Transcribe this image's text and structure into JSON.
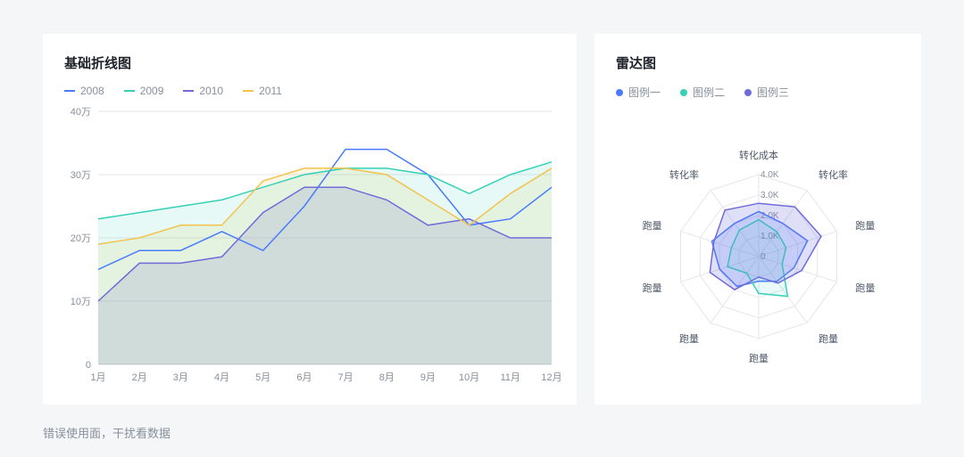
{
  "caption": "错误使用面，干扰看数据",
  "line_chart": {
    "type": "line-area",
    "title": "基础折线图",
    "title_fontsize": 15,
    "legend_items": [
      "2008",
      "2009",
      "2010",
      "2011"
    ],
    "legend_colors": [
      "#4a7afe",
      "#34d1b7",
      "#6f6cd9",
      "#f2c34d"
    ],
    "x_categories": [
      "1月",
      "2月",
      "3月",
      "4月",
      "5月",
      "6月",
      "7月",
      "8月",
      "9月",
      "10月",
      "11月",
      "12月"
    ],
    "y_ticks": [
      "0",
      "10万",
      "20万",
      "30万",
      "40万"
    ],
    "ylim": [
      0,
      40
    ],
    "series": {
      "s2008": {
        "color": "#4a7afe",
        "fill_opacity": 0.0,
        "values": [
          15,
          18,
          18,
          21,
          18,
          25,
          34,
          34,
          30,
          22,
          23,
          28
        ]
      },
      "s2009": {
        "color": "#34d1b7",
        "fill_opacity": 0.12,
        "values": [
          23,
          24,
          25,
          26,
          28,
          30,
          31,
          31,
          30,
          27,
          30,
          32
        ]
      },
      "s2010": {
        "color": "#6f6cd9",
        "fill_opacity": 0.18,
        "values": [
          10,
          16,
          16,
          17,
          24,
          28,
          28,
          26,
          22,
          23,
          20,
          20
        ]
      },
      "s2011": {
        "color": "#f2c34d",
        "fill_opacity": 0.14,
        "values": [
          19,
          20,
          22,
          22,
          29,
          31,
          31,
          30,
          26,
          22,
          27,
          31
        ]
      }
    },
    "axis_color": "#c9cdd4",
    "grid_color": "#e5e6eb",
    "tick_font_color": "#86909c",
    "tick_fontsize": 11,
    "background_color": "#ffffff",
    "line_width": 1.5
  },
  "radar_chart": {
    "type": "radar",
    "title": "雷达图",
    "title_fontsize": 15,
    "legend_items": [
      "图例一",
      "图例二",
      "图例三"
    ],
    "legend_colors": [
      "#4a7afe",
      "#34d1b7",
      "#6f6cd9"
    ],
    "axes_labels": [
      "转化成本",
      "转化率",
      "跑量",
      "跑量",
      "跑量",
      "跑量",
      "跑量",
      "跑量",
      "跑量",
      "转化率"
    ],
    "ring_labels": [
      "0",
      "1.0K",
      "2.0K",
      "3.0K",
      "4.0K"
    ],
    "max": 4.0,
    "series": {
      "s1": {
        "color": "#4a7afe",
        "fill_opacity": 0.18,
        "values": [
          2.2,
          2.0,
          2.5,
          1.8,
          1.5,
          1.2,
          1.8,
          2.0,
          2.4,
          2.0
        ]
      },
      "s2": {
        "color": "#34d1b7",
        "fill_opacity": 0.1,
        "values": [
          1.8,
          1.5,
          1.4,
          1.2,
          2.4,
          1.8,
          1.0,
          1.6,
          1.4,
          1.6
        ]
      },
      "s3": {
        "color": "#6f6cd9",
        "fill_opacity": 0.22,
        "values": [
          2.6,
          3.0,
          3.2,
          2.2,
          1.6,
          1.0,
          2.0,
          2.5,
          2.3,
          2.8
        ]
      }
    },
    "axis_color": "#e5e6eb",
    "tick_font_color": "#86909c",
    "tick_fontsize": 10,
    "label_font_color": "#4e5969",
    "label_fontsize": 11,
    "background_color": "#ffffff",
    "line_width": 1.5
  }
}
